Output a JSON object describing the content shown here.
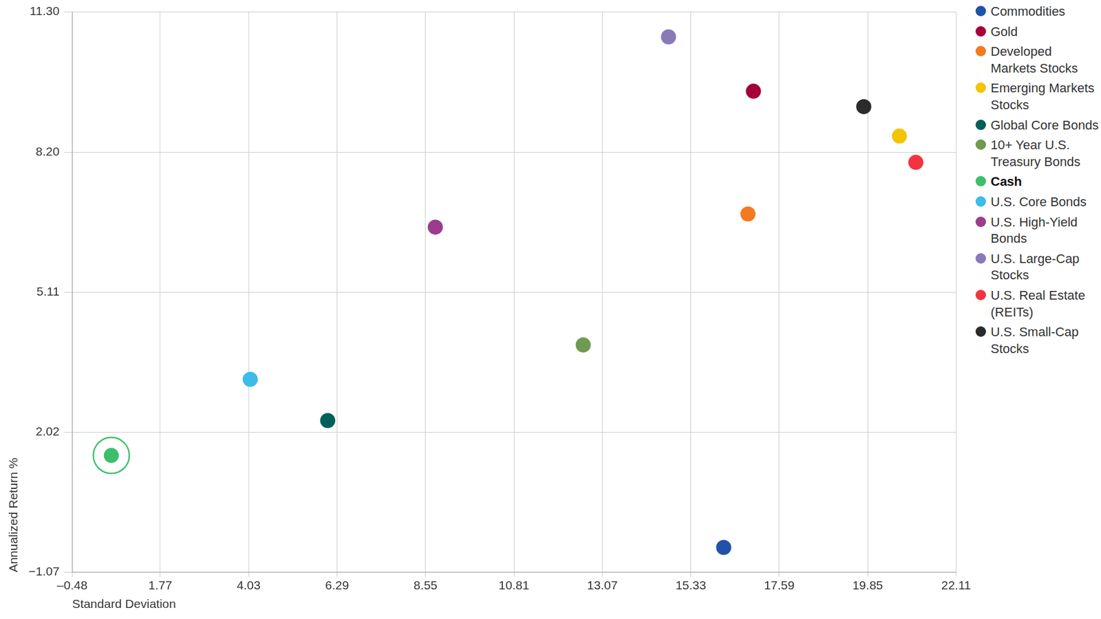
{
  "chart_data": {
    "type": "scatter",
    "x_label": "Standard Deviation",
    "y_label": "Annualized Return %",
    "xlim": [
      -0.48,
      22.11
    ],
    "xticks": [
      {
        "value": -0.48,
        "label": "–0.48"
      },
      1.77,
      4.03,
      6.29,
      8.55,
      10.81,
      13.07,
      15.33,
      17.59,
      19.85,
      22.11
    ],
    "ylim": [
      -1.07,
      11.3
    ],
    "yticks": [
      {
        "value": -1.07,
        "label": "−1.07"
      },
      2.02,
      5.11,
      {
        "value": 8.2,
        "label": "8.20"
      },
      {
        "value": 11.3,
        "label": "11.30"
      }
    ],
    "grid": true,
    "legend": "right",
    "series": [
      {
        "name": "Commodities",
        "color": "#2053a6",
        "x": [
          16.17
        ],
        "values": [
          -0.52
        ]
      },
      {
        "name": "Gold",
        "color": "#a5003a",
        "x": [
          16.93
        ],
        "values": [
          9.55
        ]
      },
      {
        "name": "Developed Markets Stocks",
        "color": "#f47a20",
        "x": [
          16.79
        ],
        "values": [
          6.84
        ]
      },
      {
        "name": "Emerging Markets Stocks",
        "color": "#f5c400",
        "x": [
          20.66
        ],
        "values": [
          8.56
        ]
      },
      {
        "name": "Global Core Bonds",
        "color": "#00605a",
        "x": [
          6.05
        ],
        "values": [
          2.28
        ]
      },
      {
        "name": "10+ Year U.S. Treasury Bonds",
        "color": "#6e9b4f",
        "x": [
          12.58
        ],
        "values": [
          3.95
        ]
      },
      {
        "name": "Cash",
        "color": "#3cbf6c",
        "marker": "ringed",
        "x": [
          0.52
        ],
        "values": [
          1.51
        ]
      },
      {
        "name": "U.S. Core Bonds",
        "color": "#3dbbe9",
        "x": [
          4.07
        ],
        "values": [
          3.19
        ]
      },
      {
        "name": "U.S. High-Yield Bonds",
        "color": "#9b3c8d",
        "x": [
          8.8
        ],
        "values": [
          6.55
        ]
      },
      {
        "name": "U.S. Large-Cap Stocks",
        "color": "#8b78b8",
        "x": [
          14.76
        ],
        "values": [
          10.75
        ]
      },
      {
        "name": "U.S. Real Estate (REITs)",
        "color": "#f5333f",
        "x": [
          21.08
        ],
        "values": [
          7.98
        ]
      },
      {
        "name": "U.S. Small-Cap Stocks",
        "color": "#2b2b2b",
        "x": [
          19.75
        ],
        "values": [
          9.21
        ]
      }
    ]
  }
}
